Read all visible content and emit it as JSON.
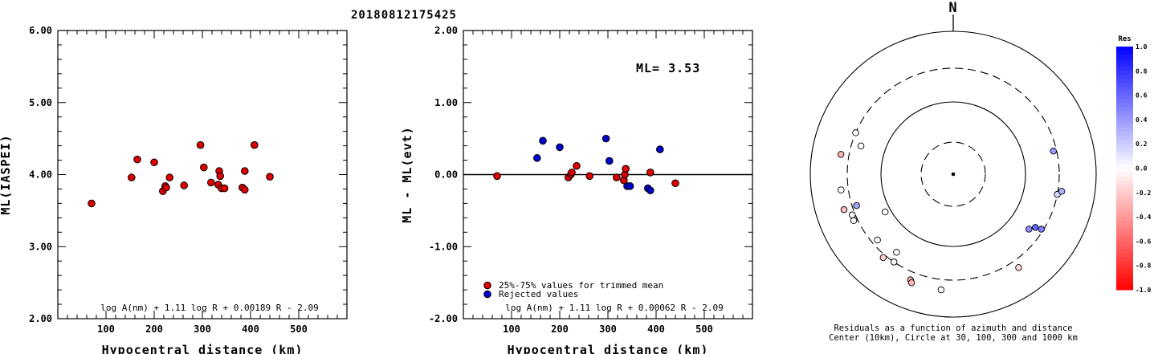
{
  "title": "20180812175425",
  "chart_data": [
    {
      "type": "scatter",
      "xlabel": "Hypocentral distance (km)",
      "ylabel": "ML(IASPEI)",
      "xlim": [
        0,
        600
      ],
      "ylim": [
        2.0,
        6.0
      ],
      "x_ticks": [
        "100",
        "200",
        "300",
        "400",
        "500"
      ],
      "y_ticks": [
        "2.00",
        "3.00",
        "4.00",
        "5.00",
        "6.00"
      ],
      "formula": "log A(nm) + 1.11 log R + 0.00189 R - 2.09",
      "series": [
        {
          "color": "#dd0000",
          "points": [
            [
              70,
              3.6
            ],
            [
              153,
              3.96
            ],
            [
              165,
              4.21
            ],
            [
              200,
              4.17
            ],
            [
              218,
              3.77
            ],
            [
              223,
              3.84
            ],
            [
              225,
              3.82
            ],
            [
              232,
              3.96
            ],
            [
              262,
              3.85
            ],
            [
              296,
              4.41
            ],
            [
              303,
              4.1
            ],
            [
              318,
              3.89
            ],
            [
              333,
              3.86
            ],
            [
              335,
              4.05
            ],
            [
              337,
              3.98
            ],
            [
              340,
              3.81
            ],
            [
              346,
              3.81
            ],
            [
              383,
              3.82
            ],
            [
              388,
              3.79
            ],
            [
              388,
              4.05
            ],
            [
              408,
              4.41
            ],
            [
              440,
              3.97
            ]
          ]
        }
      ]
    },
    {
      "type": "scatter",
      "xlabel": "Hypocentral distance (km)",
      "ylabel": "ML - ML(evt)",
      "xlim": [
        0,
        600
      ],
      "ylim": [
        -2.0,
        2.0
      ],
      "x_ticks": [
        "100",
        "200",
        "300",
        "400",
        "500"
      ],
      "y_ticks": [
        "-2.00",
        "-1.00",
        "0.00",
        "1.00",
        "2.00"
      ],
      "annotation": "ML= 3.53",
      "formula": "log A(nm) + 1.11 log R + 0.00062 R - 2.09",
      "legend": [
        {
          "label": "25%-75% values for trimmed mean",
          "color": "#dd0000"
        },
        {
          "label": "Rejected values",
          "color": "#0000cc"
        }
      ],
      "series": [
        {
          "name": "25%-75% values for trimmed mean",
          "color": "#dd0000",
          "points": [
            [
              70,
              -0.02
            ],
            [
              218,
              -0.04
            ],
            [
              223,
              0.0
            ],
            [
              225,
              0.03
            ],
            [
              235,
              0.12
            ],
            [
              262,
              -0.02
            ],
            [
              318,
              -0.04
            ],
            [
              333,
              -0.08
            ],
            [
              335,
              0.0
            ],
            [
              337,
              0.08
            ],
            [
              388,
              0.03
            ],
            [
              440,
              -0.12
            ]
          ]
        },
        {
          "name": "Rejected values",
          "color": "#0000cc",
          "points": [
            [
              153,
              0.23
            ],
            [
              165,
              0.47
            ],
            [
              200,
              0.38
            ],
            [
              296,
              0.5
            ],
            [
              303,
              0.19
            ],
            [
              340,
              -0.16
            ],
            [
              346,
              -0.16
            ],
            [
              383,
              -0.19
            ],
            [
              388,
              -0.22
            ],
            [
              408,
              0.35
            ]
          ]
        }
      ]
    },
    {
      "type": "scatter",
      "subtype": "polar residual map",
      "north_label": "N",
      "caption_line1": "Residuals as a function of azimuth and distance",
      "caption_line2": "Center (10km), Circle at 30, 100, 300 and 1000 km",
      "rings_km": [
        30,
        100,
        300,
        1000
      ],
      "colorbar": {
        "title": "Res",
        "range": [
          -1.0,
          1.0
        ],
        "ticks": [
          "1.0",
          "0.8",
          "0.6",
          "0.4",
          "0.2",
          "0.0",
          "-0.2",
          "-0.4",
          "-0.6",
          "-0.8",
          "-1.0"
        ],
        "positive_color": "#0000ff",
        "negative_color": "#ff0000"
      },
      "stations": [
        {
          "azimuth": 293,
          "distance_km": 300,
          "residual": 0.0
        },
        {
          "azimuth": 287,
          "distance_km": 220,
          "residual": 0.0
        },
        {
          "azimuth": 280,
          "distance_km": 390,
          "residual": -0.3
        },
        {
          "azimuth": 262,
          "distance_km": 380,
          "residual": 0.0
        },
        {
          "azimuth": 252,
          "distance_km": 400,
          "residual": -0.25
        },
        {
          "azimuth": 252,
          "distance_km": 260,
          "residual": 0.35
        },
        {
          "azimuth": 248,
          "distance_km": 330,
          "residual": 0.0
        },
        {
          "azimuth": 245,
          "distance_km": 340,
          "residual": 0.0
        },
        {
          "azimuth": 241,
          "distance_km": 120,
          "residual": 0.0
        },
        {
          "azimuth": 229,
          "distance_km": 250,
          "residual": 0.0
        },
        {
          "azimuth": 220,
          "distance_km": 330,
          "residual": -0.2
        },
        {
          "azimuth": 216,
          "distance_km": 220,
          "residual": 0.0
        },
        {
          "azimuth": 214,
          "distance_km": 300,
          "residual": 0.0
        },
        {
          "azimuth": 202,
          "distance_km": 390,
          "residual": -0.3
        },
        {
          "azimuth": 201,
          "distance_km": 420,
          "residual": -0.3
        },
        {
          "azimuth": 186,
          "distance_km": 420,
          "residual": 0.0
        },
        {
          "azimuth": 145,
          "distance_km": 390,
          "residual": -0.15
        },
        {
          "azimuth": 126,
          "distance_km": 200,
          "residual": 0.45
        },
        {
          "azimuth": 123,
          "distance_km": 230,
          "residual": 0.6
        },
        {
          "azimuth": 122,
          "distance_km": 280,
          "residual": 0.5
        },
        {
          "azimuth": 101,
          "distance_km": 300,
          "residual": 0.15
        },
        {
          "azimuth": 99,
          "distance_km": 340,
          "residual": 0.3
        },
        {
          "azimuth": 77,
          "distance_km": 270,
          "residual": 0.4
        }
      ]
    }
  ]
}
